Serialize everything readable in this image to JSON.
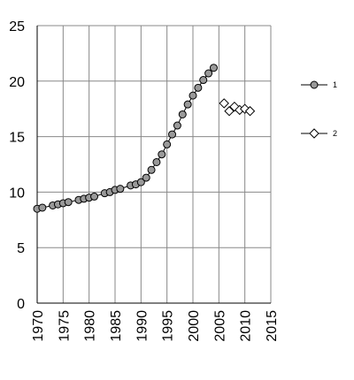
{
  "chart_data": {
    "type": "line",
    "series": [
      {
        "name": "1",
        "color": "#999999",
        "marker": "circle",
        "x": [
          1970,
          1971,
          1973,
          1974,
          1975,
          1976,
          1978,
          1979,
          1980,
          1981,
          1983,
          1984,
          1985,
          1986,
          1988,
          1989,
          1990,
          1991,
          1992,
          1993,
          1994,
          1995,
          1996,
          1997,
          1998,
          1999,
          2000,
          2001,
          2002,
          2003,
          2004
        ],
        "values": [
          8.5,
          8.6,
          8.8,
          8.9,
          9.0,
          9.1,
          9.3,
          9.4,
          9.5,
          9.6,
          9.9,
          10.0,
          10.2,
          10.3,
          10.6,
          10.7,
          10.9,
          11.3,
          12.0,
          12.7,
          13.4,
          14.3,
          15.2,
          16.0,
          17.0,
          17.9,
          18.7,
          19.4,
          20.1,
          20.7,
          21.2
        ]
      },
      {
        "name": "2",
        "color": "#ffffff",
        "marker": "diamond",
        "x": [
          2006,
          2007,
          2008,
          2009,
          2010,
          2011
        ],
        "values": [
          18.0,
          17.3,
          17.7,
          17.4,
          17.5,
          17.3
        ]
      }
    ],
    "xlim": [
      1970,
      2015
    ],
    "xticks": [
      1970,
      1975,
      1980,
      1985,
      1990,
      1995,
      2000,
      2005,
      2010,
      2015
    ],
    "ylim": [
      0,
      25
    ],
    "yticks": [
      0,
      5,
      10,
      15,
      20,
      25
    ],
    "grid": true
  }
}
